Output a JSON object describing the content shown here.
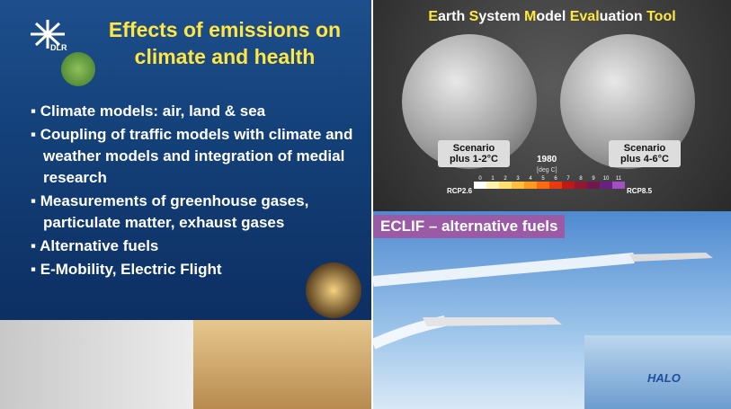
{
  "logo": "DLR",
  "title": "Effects of emissions on climate and health",
  "bullets": [
    "Climate models: air, land & sea",
    "Coupling of traffic models with climate and weather models and integration of medial research",
    "Measurements of greenhouse gases, particulate matter, exhaust gases",
    "Alternative fuels",
    "E-Mobility, Electric Flight"
  ],
  "esm": {
    "title_parts": [
      {
        "text": "E",
        "highlight": true
      },
      {
        "text": "arth ",
        "highlight": false
      },
      {
        "text": "S",
        "highlight": true
      },
      {
        "text": "ystem ",
        "highlight": false
      },
      {
        "text": "M",
        "highlight": true
      },
      {
        "text": "odel ",
        "highlight": false
      },
      {
        "text": "E",
        "highlight": true
      },
      {
        "text": "val",
        "highlight": true
      },
      {
        "text": "uation ",
        "highlight": false
      },
      {
        "text": "Tool",
        "highlight": true
      }
    ],
    "scenario_left": "Scenario plus 1-2°C",
    "scenario_right": "Scenario plus 4-6°C",
    "year": "1980",
    "unit": "[deg C]",
    "scale_left": "RCP2.6",
    "scale_right": "RCP8.5",
    "scale": [
      "0",
      "1",
      "2",
      "3",
      "4",
      "5",
      "6",
      "7",
      "8",
      "9",
      "10",
      "11"
    ]
  },
  "eclif": "ECLIF – alternative fuels",
  "halo": "HALO"
}
